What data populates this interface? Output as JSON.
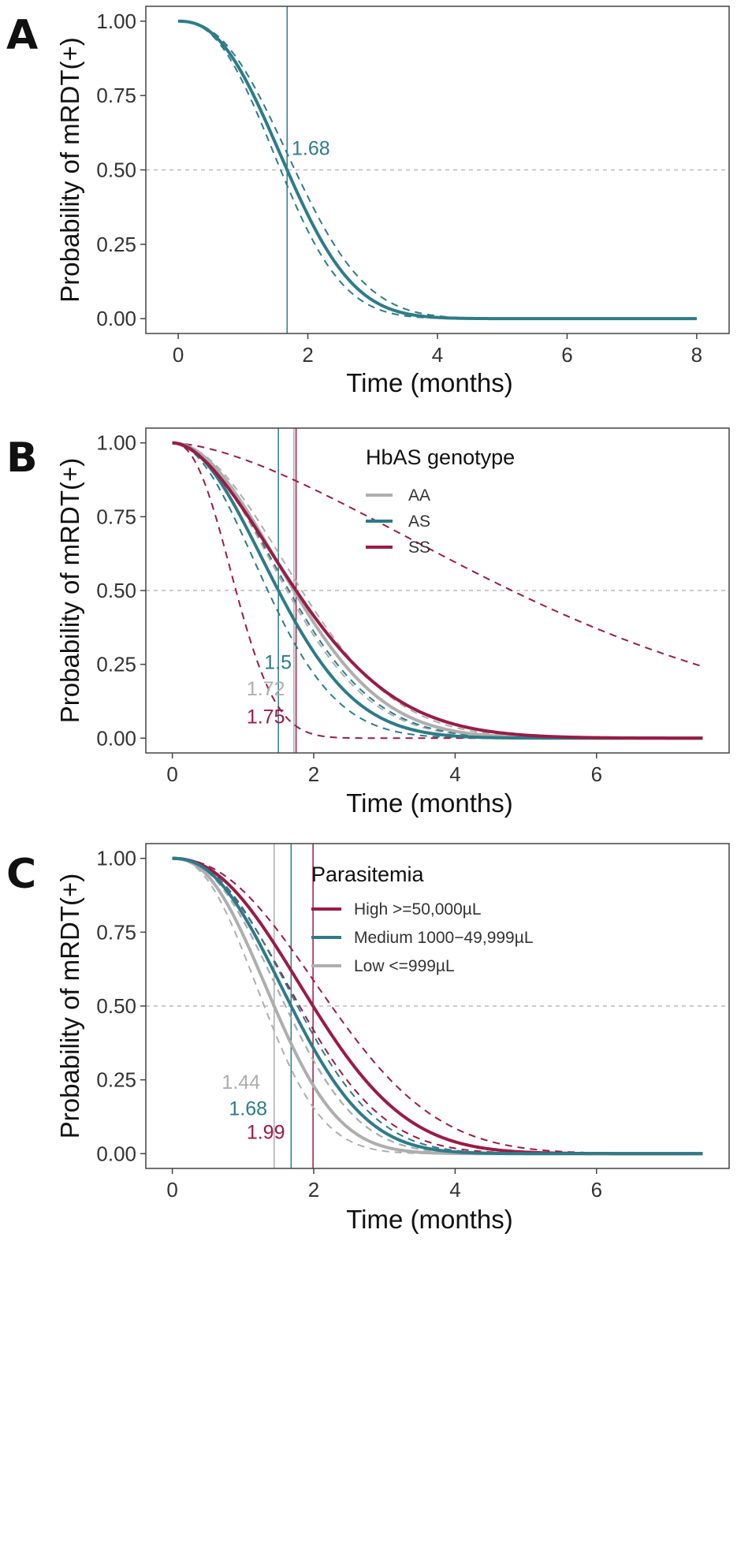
{
  "colors": {
    "teal": "#2E7B89",
    "maroon": "#9B1B45",
    "gray": "#AEAEAE",
    "frame": "#444444",
    "ref": "#BBBBBB"
  },
  "chart_data": [
    {
      "type": "line",
      "panel_label": "A",
      "xlabel": "Time (months)",
      "ylabel": "Probability of mRDT(+)",
      "xlim": [
        -0.5,
        8.5
      ],
      "ylim": [
        -0.05,
        1.05
      ],
      "x_ticks": [
        0,
        2,
        4,
        6,
        8
      ],
      "x_tick_labels": [
        "0",
        "2",
        "4",
        "6",
        "8"
      ],
      "y_ticks": [
        0,
        0.25,
        0.5,
        0.75,
        1
      ],
      "y_tick_labels": [
        "0.00",
        "0.25",
        "0.50",
        "0.75",
        "1.00"
      ],
      "x_max": 8,
      "reference_line_y": 0.5,
      "legend": null,
      "series": [
        {
          "color": "teal",
          "median": 1.68,
          "median_label": "1.68",
          "median_label_pos": [
            1.75,
            0.55
          ],
          "shape": 2.4,
          "ci_medians": [
            1.58,
            1.8
          ],
          "ci_color": "teal"
        }
      ]
    },
    {
      "type": "line",
      "panel_label": "B",
      "xlabel": "Time (months)",
      "ylabel": "Probability of mRDT(+)",
      "xlim": [
        -0.375,
        7.875
      ],
      "ylim": [
        -0.05,
        1.05
      ],
      "x_ticks": [
        0,
        2,
        4,
        6
      ],
      "x_tick_labels": [
        "0",
        "2",
        "4",
        "6"
      ],
      "y_ticks": [
        0,
        0.25,
        0.5,
        0.75,
        1
      ],
      "y_tick_labels": [
        "0.00",
        "0.25",
        "0.50",
        "0.75",
        "1.00"
      ],
      "x_max": 7.5,
      "reference_line_y": 0.5,
      "legend": {
        "title": "HbAS genotype",
        "entries": [
          {
            "label": "AA",
            "color": "gray"
          },
          {
            "label": "AS",
            "color": "teal"
          },
          {
            "label": "SS",
            "color": "maroon"
          }
        ]
      },
      "series": [
        {
          "name": "AA",
          "color": "gray",
          "median": 1.72,
          "median_label": "1.72",
          "median_label_pos": [
            1.05,
            0.145
          ],
          "shape": 2.0,
          "ci_medians": [
            1.62,
            1.83
          ],
          "ci_color": "gray"
        },
        {
          "name": "AS",
          "color": "teal",
          "median": 1.5,
          "median_label": "1.5",
          "median_label_pos": [
            1.3,
            0.235
          ],
          "shape": 2.0,
          "ci_medians": [
            1.35,
            1.65
          ],
          "ci_color": "teal"
        },
        {
          "name": "SS",
          "color": "maroon",
          "median": 1.75,
          "median_label": "1.75",
          "median_label_pos": [
            1.05,
            0.05
          ],
          "shape": 1.8,
          "ci_medians": [
            0.9,
            4.8
          ],
          "ci_shapes": [
            2.3,
            1.6
          ],
          "ci_color": "maroon"
        }
      ]
    },
    {
      "type": "line",
      "panel_label": "C",
      "xlabel": "Time (months)",
      "ylabel": "Probability of mRDT(+)",
      "xlim": [
        -0.375,
        7.875
      ],
      "ylim": [
        -0.05,
        1.05
      ],
      "x_ticks": [
        0,
        2,
        4,
        6
      ],
      "x_tick_labels": [
        "0",
        "2",
        "4",
        "6"
      ],
      "y_ticks": [
        0,
        0.25,
        0.5,
        0.75,
        1
      ],
      "y_tick_labels": [
        "0.00",
        "0.25",
        "0.50",
        "0.75",
        "1.00"
      ],
      "x_max": 7.5,
      "reference_line_y": 0.5,
      "legend": {
        "title": "Parasitemia",
        "entries": [
          {
            "label": "High >=50,000µL",
            "color": "maroon"
          },
          {
            "label": "Medium 1000−49,999µL",
            "color": "teal"
          },
          {
            "label": "Low <=999µL",
            "color": "gray"
          }
        ]
      },
      "series": [
        {
          "name": "High >=50,000µL",
          "color": "maroon",
          "median": 1.99,
          "median_label": "1.99",
          "median_label_pos": [
            1.05,
            0.05
          ],
          "shape": 2.2,
          "ci_medians": [
            1.8,
            2.25
          ],
          "ci_color": "maroon"
        },
        {
          "name": "Medium 1000−49,999µL",
          "color": "teal",
          "median": 1.68,
          "median_label": "1.68",
          "median_label_pos": [
            0.8,
            0.13
          ],
          "shape": 2.3,
          "ci_medians": [
            1.6,
            1.77
          ],
          "ci_color": "teal"
        },
        {
          "name": "Low <=999µL",
          "color": "gray",
          "median": 1.44,
          "median_label": "1.44",
          "median_label_pos": [
            0.7,
            0.22
          ],
          "shape": 2.3,
          "ci_medians": [
            1.3,
            1.6
          ],
          "ci_color": "gray"
        }
      ]
    }
  ]
}
